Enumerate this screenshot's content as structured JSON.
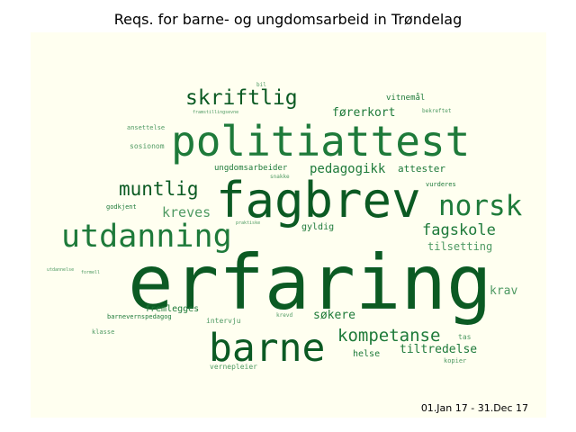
{
  "title": "Reqs. for barne- og ungdomsarbeid in Trøndelag",
  "period": "01.Jan 17 - 31.Dec 17",
  "colors": {
    "background": "#fffff0",
    "dark_green": "#0b5a23",
    "mid_green": "#1e7a3a",
    "light_green": "#4f9a63"
  },
  "words": {
    "erfaring": "erfaring",
    "politiattest": "politiattest",
    "fagbrev": "fagbrev",
    "barne": "barne",
    "utdanning": "utdanning",
    "norsk": "norsk",
    "skriftlig": "skriftlig",
    "muntlig": "muntlig",
    "kompetanse": "kompetanse",
    "fagskole": "fagskole",
    "pedagogikk": "pedagogikk",
    "forerkort": "førerkort",
    "kreves": "kreves",
    "tiltredelse": "tiltredelse",
    "sokere": "søkere",
    "tilsetting": "tilsetting",
    "krav": "krav",
    "attester": "attester",
    "vitnemal": "vitnemål",
    "gyldig": "gyldig",
    "helse": "helse",
    "fremlegges": "fremlegges",
    "ungdomsarbeider": "ungdomsarbeider",
    "sosionom": "sosionom",
    "ansettelse": "ansettelse",
    "godkjent": "godkjent",
    "barnevernspedagog": "barnevernspedagog",
    "intervju": "intervju",
    "vernepleier": "vernepleier",
    "klasse": "klasse",
    "vurderes": "vurderes",
    "kopier": "kopier",
    "tas": "tas",
    "krevd": "krevd",
    "bekreftet": "bekreftet",
    "snakke": "snakke",
    "praktiske": "praktiske",
    "framstillingsevne": "framstillingsevne",
    "bil": "bil",
    "utdannelse": "utdannelse",
    "formell": "formell"
  }
}
